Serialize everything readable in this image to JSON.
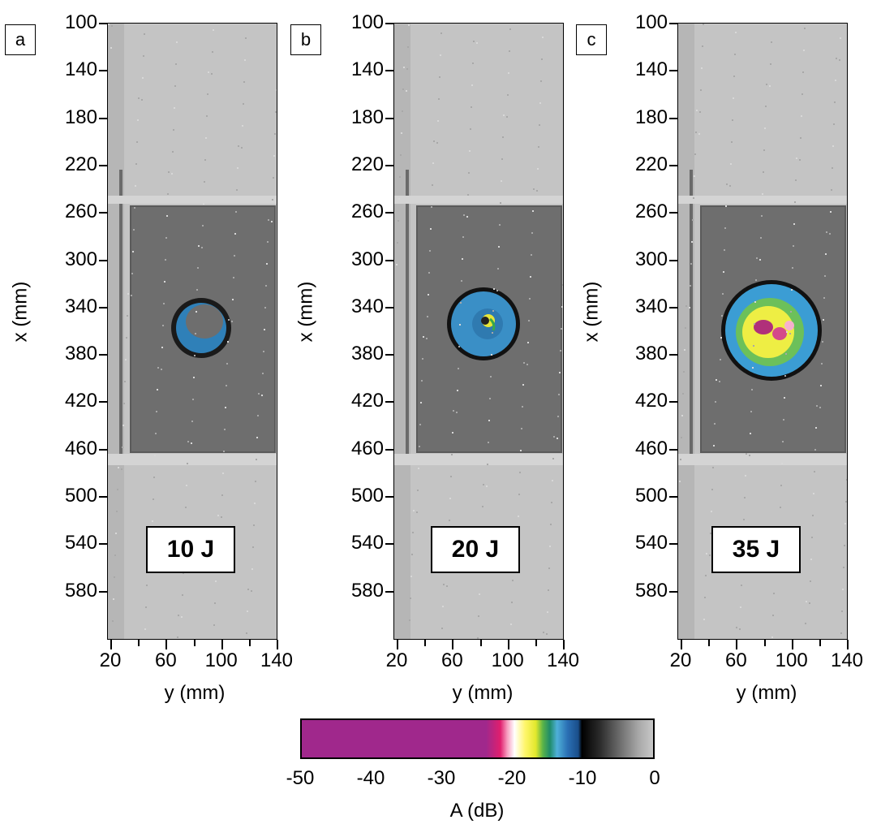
{
  "panels": [
    {
      "letter": "a",
      "energy": "10 J"
    },
    {
      "letter": "b",
      "energy": "20 J"
    },
    {
      "letter": "c",
      "energy": "35 J"
    }
  ],
  "axes": {
    "x_title": "x (mm)",
    "y_title": "y (mm)",
    "x_ticks": [
      "100",
      "140",
      "180",
      "220",
      "260",
      "300",
      "340",
      "380",
      "420",
      "460",
      "500",
      "540",
      "580"
    ],
    "y_ticks": [
      "20",
      "60",
      "100",
      "140"
    ]
  },
  "colorbar": {
    "title": "A (dB)",
    "ticks": [
      "-50",
      "-40",
      "-30",
      "-20",
      "-10",
      "0"
    ]
  }
}
